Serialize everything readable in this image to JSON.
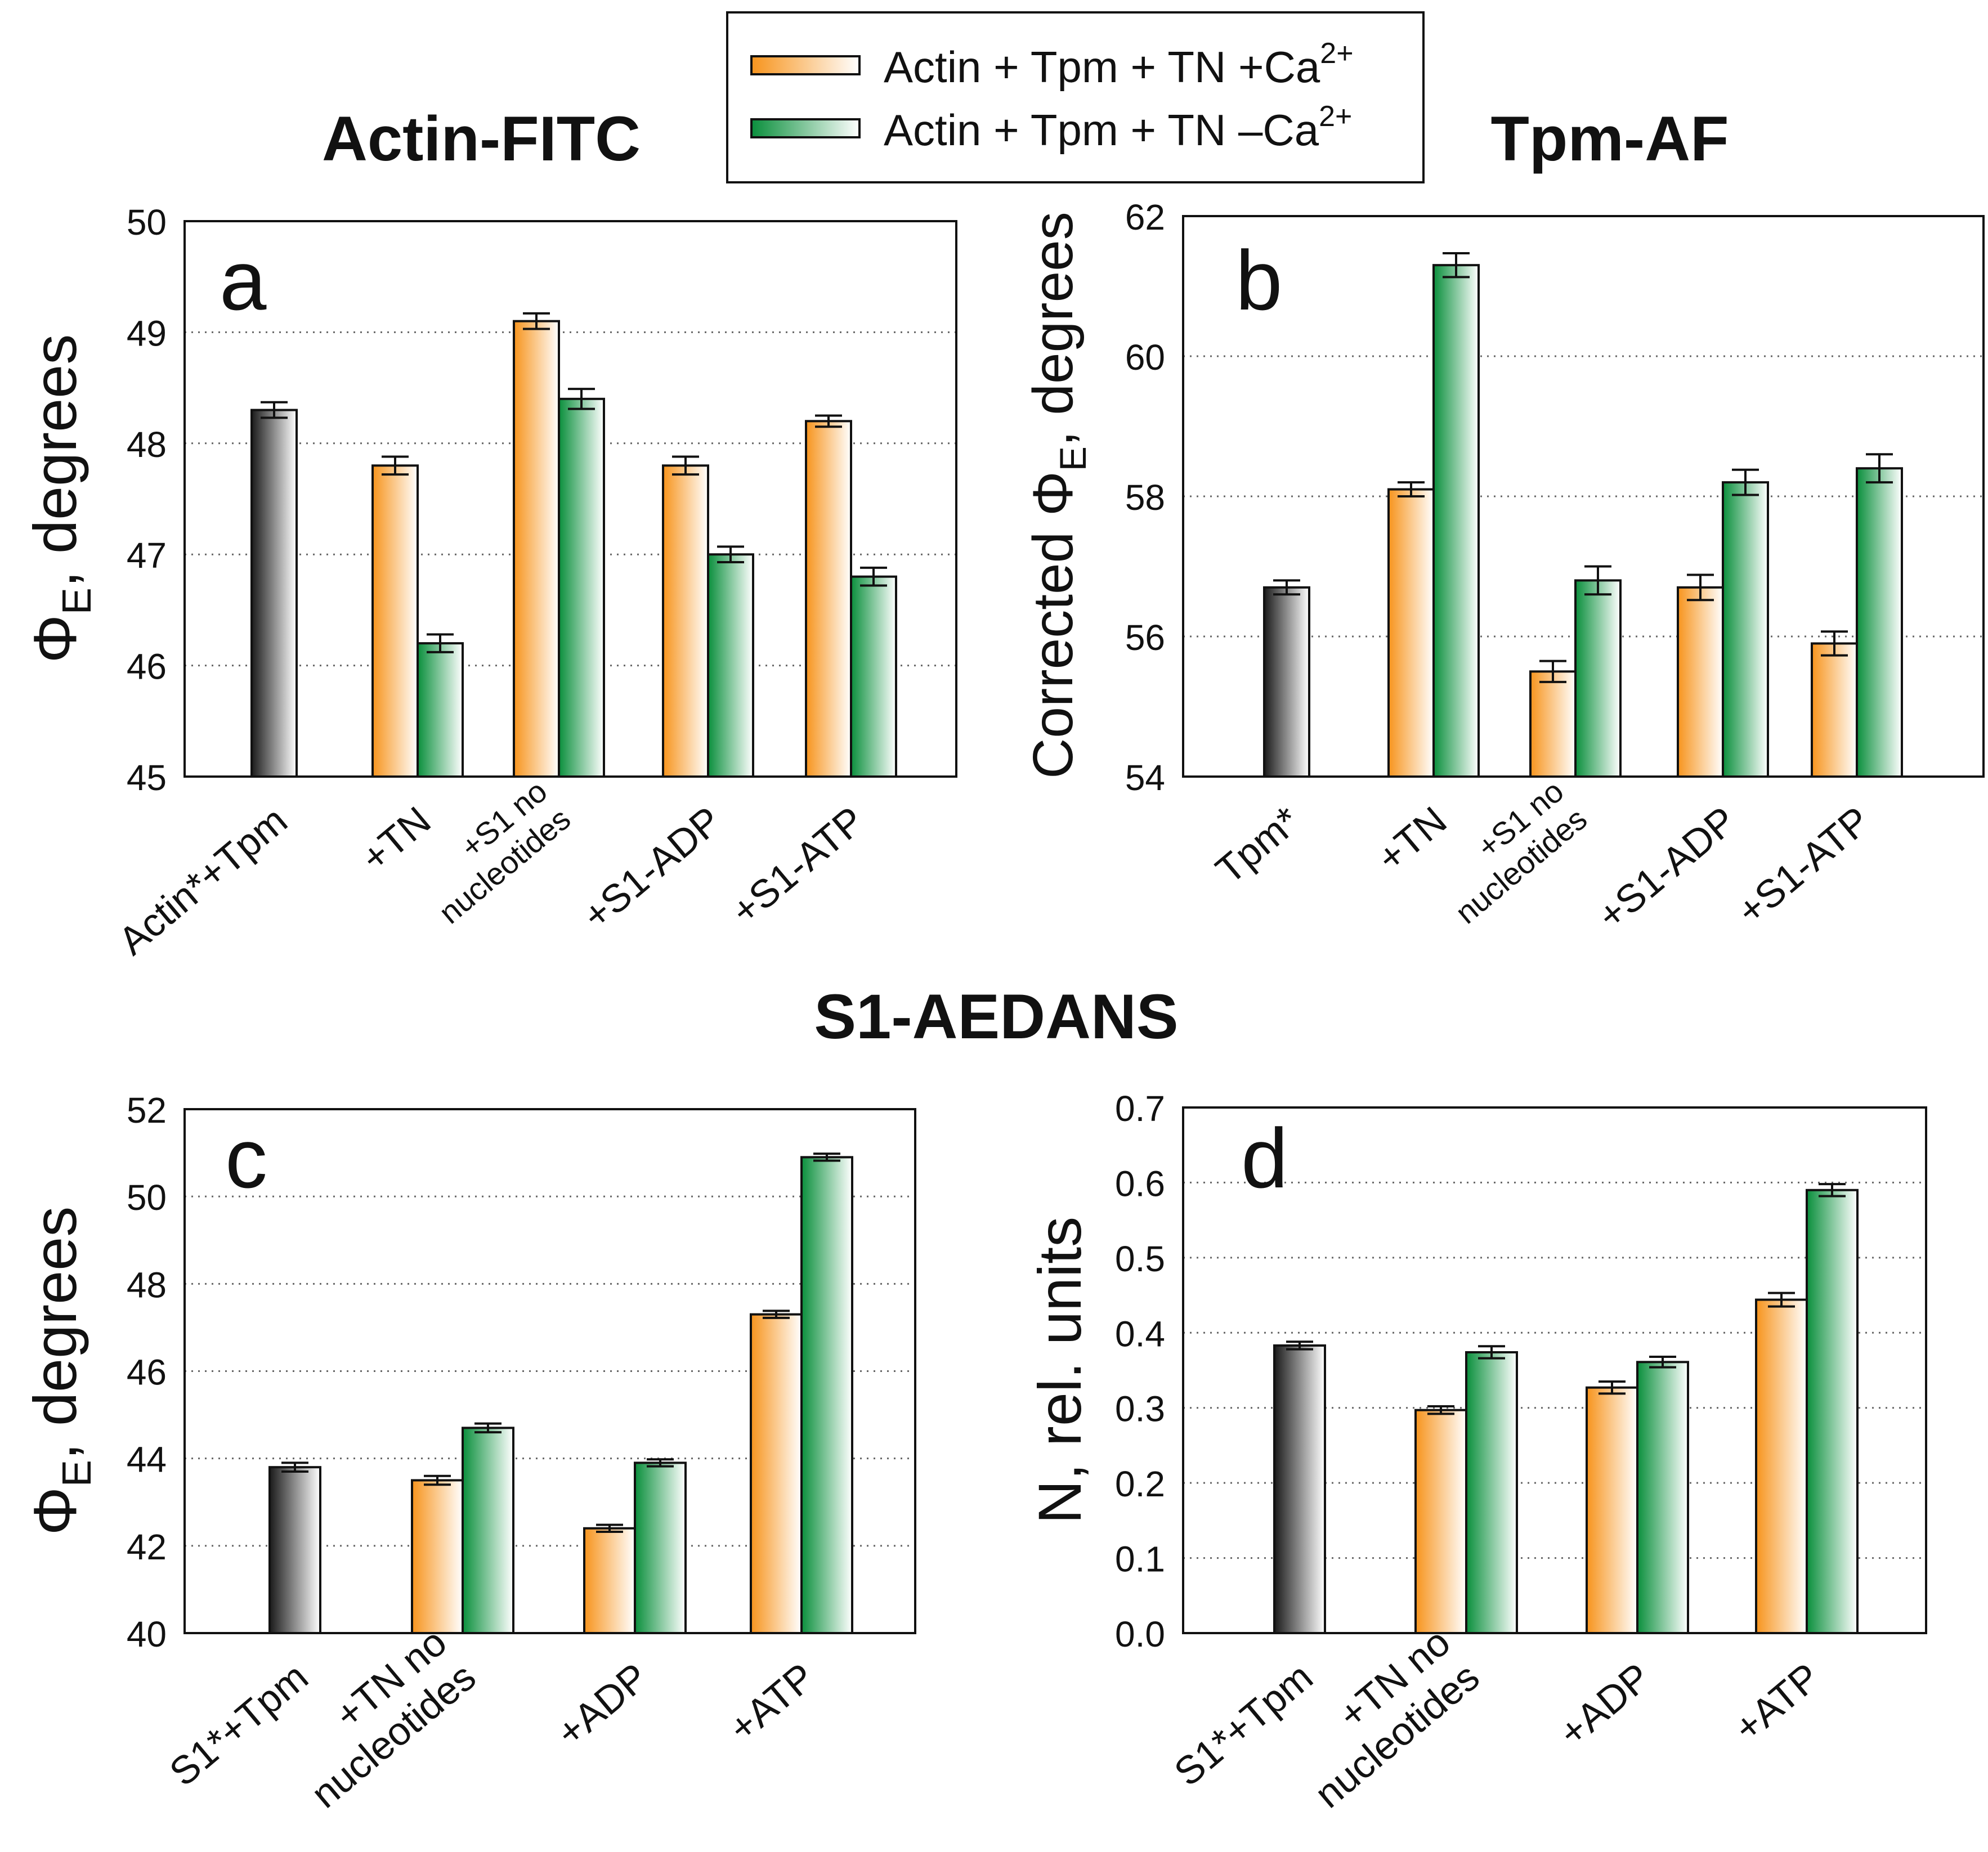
{
  "figure": {
    "title_actin": "Actin-FITC",
    "title_tpm": "Tpm-AF",
    "title_s1": "S1-AEDANS"
  },
  "legend": {
    "ca_plus": "Actin + Tpm + TN +Ca",
    "ca_minus": "Actin + Tpm + TN –Ca",
    "ca_sup": "2+"
  },
  "colors": {
    "ca_plus": "#f7941d",
    "ca_minus": "#0a8f3c",
    "control": "#1a1a1a"
  },
  "chart_data": [
    {
      "type": "bar",
      "panel": "a",
      "ylabel_main": "Φ",
      "ylabel_sub": "E",
      "ylabel_rest": ", degrees",
      "ylim": [
        45,
        50
      ],
      "yticks": [
        "45",
        "46",
        "47",
        "48",
        "49",
        "50"
      ],
      "categories": [
        "Actin*+Tpm",
        "+TN",
        "+S1 no nucleotides",
        "+S1-ADP",
        "+S1-ATP"
      ],
      "series": [
        {
          "name": "control",
          "values": [
            48.3,
            null,
            null,
            null,
            null
          ],
          "errors": [
            0.07,
            null,
            null,
            null,
            null
          ]
        },
        {
          "name": "Actin + Tpm + TN +Ca2+",
          "values": [
            null,
            47.8,
            49.1,
            47.8,
            48.2
          ],
          "errors": [
            null,
            0.08,
            0.07,
            0.08,
            0.05
          ]
        },
        {
          "name": "Actin + Tpm + TN –Ca2+",
          "values": [
            null,
            46.2,
            48.4,
            47.0,
            46.8
          ],
          "errors": [
            null,
            0.08,
            0.09,
            0.07,
            0.08
          ]
        }
      ],
      "tick_labels": [
        {
          "lines": [
            "Actin*+Tpm"
          ],
          "small": false
        },
        {
          "lines": [
            "+TN"
          ],
          "small": false
        },
        {
          "lines": [
            "+S1 no",
            "nucleotides"
          ],
          "small": true
        },
        {
          "lines": [
            "+S1-ADP"
          ],
          "small": false
        },
        {
          "lines": [
            "+S1-ATP"
          ],
          "small": false
        }
      ]
    },
    {
      "type": "bar",
      "panel": "b",
      "ylabel_main": "Corrected Φ",
      "ylabel_sub": "E",
      "ylabel_rest": ", degrees",
      "ylim": [
        54,
        62
      ],
      "yticks": [
        "54",
        "56",
        "58",
        "60",
        "62"
      ],
      "categories": [
        "Tpm*",
        "+TN",
        "+S1 no nucleotides",
        "+S1-ADP",
        "+S1-ATP"
      ],
      "series": [
        {
          "name": "control",
          "values": [
            56.7,
            null,
            null,
            null,
            null
          ],
          "errors": [
            0.1,
            null,
            null,
            null,
            null
          ]
        },
        {
          "name": "Actin + Tpm + TN +Ca2+",
          "values": [
            null,
            58.1,
            55.5,
            56.7,
            55.9
          ],
          "errors": [
            null,
            0.1,
            0.15,
            0.18,
            0.17
          ]
        },
        {
          "name": "Actin + Tpm + TN –Ca2+",
          "values": [
            null,
            61.3,
            56.8,
            58.2,
            58.4
          ],
          "errors": [
            null,
            0.17,
            0.2,
            0.18,
            0.2
          ]
        }
      ],
      "tick_labels": [
        {
          "lines": [
            "Tpm*"
          ],
          "small": false
        },
        {
          "lines": [
            "+TN"
          ],
          "small": false
        },
        {
          "lines": [
            "+S1 no",
            "nucleotides"
          ],
          "small": true
        },
        {
          "lines": [
            "+S1-ADP"
          ],
          "small": false
        },
        {
          "lines": [
            "+S1-ATP"
          ],
          "small": false
        }
      ]
    },
    {
      "type": "bar",
      "panel": "c",
      "ylabel_main": "Φ",
      "ylabel_sub": "E",
      "ylabel_rest": ", degrees",
      "ylim": [
        40,
        52
      ],
      "yticks": [
        "40",
        "42",
        "44",
        "46",
        "48",
        "50",
        "52"
      ],
      "categories": [
        "S1*+Tpm",
        "+TN no nucleotides",
        "+ADP",
        "+ATP"
      ],
      "series": [
        {
          "name": "control",
          "values": [
            43.8,
            null,
            null,
            null
          ],
          "errors": [
            0.1,
            null,
            null,
            null
          ]
        },
        {
          "name": "Actin + Tpm + TN +Ca2+",
          "values": [
            null,
            43.5,
            42.4,
            47.3
          ],
          "errors": [
            null,
            0.1,
            0.08,
            0.08
          ]
        },
        {
          "name": "Actin + Tpm + TN –Ca2+",
          "values": [
            null,
            44.7,
            43.9,
            50.9
          ],
          "errors": [
            null,
            0.1,
            0.08,
            0.08
          ]
        }
      ],
      "tick_labels": [
        {
          "lines": [
            "S1*+Tpm"
          ],
          "small": false
        },
        {
          "lines": [
            "+TN no",
            "nucleotides"
          ],
          "small": false
        },
        {
          "lines": [
            "+ADP"
          ],
          "small": false
        },
        {
          "lines": [
            "+ATP"
          ],
          "small": false
        }
      ]
    },
    {
      "type": "bar",
      "panel": "d",
      "ylabel_main": "N, rel. units",
      "ylabel_sub": "",
      "ylabel_rest": "",
      "ylim": [
        0.0,
        0.7
      ],
      "yticks": [
        "0.0",
        "0.1",
        "0.2",
        "0.3",
        "0.4",
        "0.5",
        "0.6",
        "0.7"
      ],
      "categories": [
        "S1*+Tpm",
        "+TN no nucleotides",
        "+ADP",
        "+ATP"
      ],
      "series": [
        {
          "name": "control",
          "values": [
            0.383,
            null,
            null,
            null
          ],
          "errors": [
            0.005,
            null,
            null,
            null
          ]
        },
        {
          "name": "Actin + Tpm + TN +Ca2+",
          "values": [
            null,
            0.297,
            0.327,
            0.444
          ],
          "errors": [
            null,
            0.005,
            0.008,
            0.009
          ]
        },
        {
          "name": "Actin + Tpm + TN –Ca2+",
          "values": [
            null,
            0.374,
            0.361,
            0.59
          ],
          "errors": [
            null,
            0.008,
            0.007,
            0.008
          ]
        }
      ],
      "tick_labels": [
        {
          "lines": [
            "S1*+Tpm"
          ],
          "small": false
        },
        {
          "lines": [
            "+TN no",
            "nucleotides"
          ],
          "small": false
        },
        {
          "lines": [
            "+ADP"
          ],
          "small": false
        },
        {
          "lines": [
            "+ATP"
          ],
          "small": false
        }
      ]
    }
  ]
}
